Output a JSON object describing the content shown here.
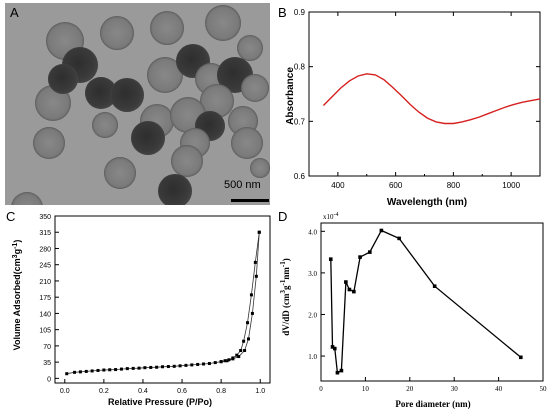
{
  "panels": {
    "A": {
      "letter": "A",
      "scale_bar_label": "500 nm",
      "colors": {
        "background": "#9a9a9a",
        "particle_light": "#7a7a7a",
        "particle_dark": "#2e2e2e"
      }
    }
  },
  "chart_data": [
    {
      "panel": "B",
      "letter": "B",
      "type": "line",
      "xlabel": "Wavelength (nm)",
      "ylabel": "Absorbance",
      "xlim": [
        300,
        1100
      ],
      "ylim": [
        0.6,
        0.9
      ],
      "xticks": [
        400,
        600,
        800,
        1000
      ],
      "yticks": [
        0.6,
        0.7,
        0.8,
        0.9
      ],
      "ytick_labels": [
        "0.6",
        "0.7",
        "0.8",
        "0.9"
      ],
      "color": "#d62020",
      "x": [
        350,
        380,
        410,
        440,
        470,
        500,
        530,
        560,
        590,
        620,
        650,
        680,
        710,
        740,
        770,
        800,
        830,
        860,
        890,
        920,
        950,
        980,
        1010,
        1040,
        1070,
        1100
      ],
      "y": [
        0.729,
        0.745,
        0.761,
        0.774,
        0.783,
        0.787,
        0.785,
        0.776,
        0.762,
        0.747,
        0.731,
        0.717,
        0.706,
        0.699,
        0.696,
        0.696,
        0.699,
        0.703,
        0.708,
        0.714,
        0.72,
        0.726,
        0.731,
        0.735,
        0.738,
        0.741
      ]
    },
    {
      "panel": "C",
      "letter": "C",
      "type": "line",
      "xlabel": "Relative Pressure (P/Po)",
      "ylabel": "Volume Adsorbed(cm3g-1)",
      "xlim": [
        -0.05,
        1.05
      ],
      "ylim": [
        -10,
        350
      ],
      "xticks": [
        0.0,
        0.2,
        0.4,
        0.6,
        0.8,
        1.0
      ],
      "xtick_labels": [
        "0.0",
        "0.2",
        "0.4",
        "0.6",
        "0.8",
        "1.0"
      ],
      "yticks": [
        0,
        35,
        70,
        105,
        140,
        175,
        210,
        245,
        280,
        315,
        350
      ],
      "series": [
        {
          "type": "adsorption",
          "x": [
            0.01,
            0.05,
            0.08,
            0.11,
            0.14,
            0.17,
            0.2,
            0.23,
            0.26,
            0.29,
            0.32,
            0.35,
            0.38,
            0.41,
            0.44,
            0.47,
            0.5,
            0.53,
            0.56,
            0.59,
            0.62,
            0.65,
            0.68,
            0.71,
            0.74,
            0.77,
            0.8,
            0.83,
            0.86,
            0.89,
            0.92,
            0.94,
            0.96,
            0.98,
            0.995
          ],
          "y": [
            10,
            13,
            14,
            15,
            16,
            17,
            18,
            18.5,
            19,
            20,
            21,
            21.5,
            22,
            23,
            23.5,
            24,
            25,
            25.5,
            26,
            27,
            28,
            29,
            30,
            31,
            32,
            34,
            36,
            38,
            42,
            47,
            60,
            85,
            140,
            220,
            315
          ]
        },
        {
          "type": "desorption",
          "x": [
            0.995,
            0.975,
            0.955,
            0.935,
            0.915,
            0.9,
            0.88,
            0.86,
            0.84,
            0.82,
            0.8
          ],
          "y": [
            315,
            250,
            180,
            120,
            80,
            60,
            50,
            44,
            40,
            38,
            36
          ]
        }
      ]
    },
    {
      "panel": "D",
      "letter": "D",
      "type": "line",
      "xlabel": "Pore diameter (nm)",
      "ylabel": "dV/dD (cm3g-1nm-1)",
      "y_multiplier_label": "x10-4",
      "xlim": [
        0,
        50
      ],
      "ylim": [
        0.4,
        4.2
      ],
      "xticks": [
        0,
        10,
        20,
        30,
        40,
        50
      ],
      "yticks": [
        1.0,
        2.0,
        3.0,
        4.0
      ],
      "ytick_labels": [
        "1.0",
        "2.0",
        "3.0",
        "4.0"
      ],
      "x": [
        2.2,
        2.6,
        3.1,
        3.7,
        4.6,
        5.6,
        6.4,
        7.4,
        8.8,
        11.0,
        13.6,
        17.6,
        25.6,
        45.0
      ],
      "y": [
        3.33,
        1.22,
        1.18,
        0.6,
        0.65,
        2.78,
        2.6,
        2.55,
        3.38,
        3.5,
        4.02,
        3.83,
        2.68,
        0.97
      ]
    }
  ]
}
